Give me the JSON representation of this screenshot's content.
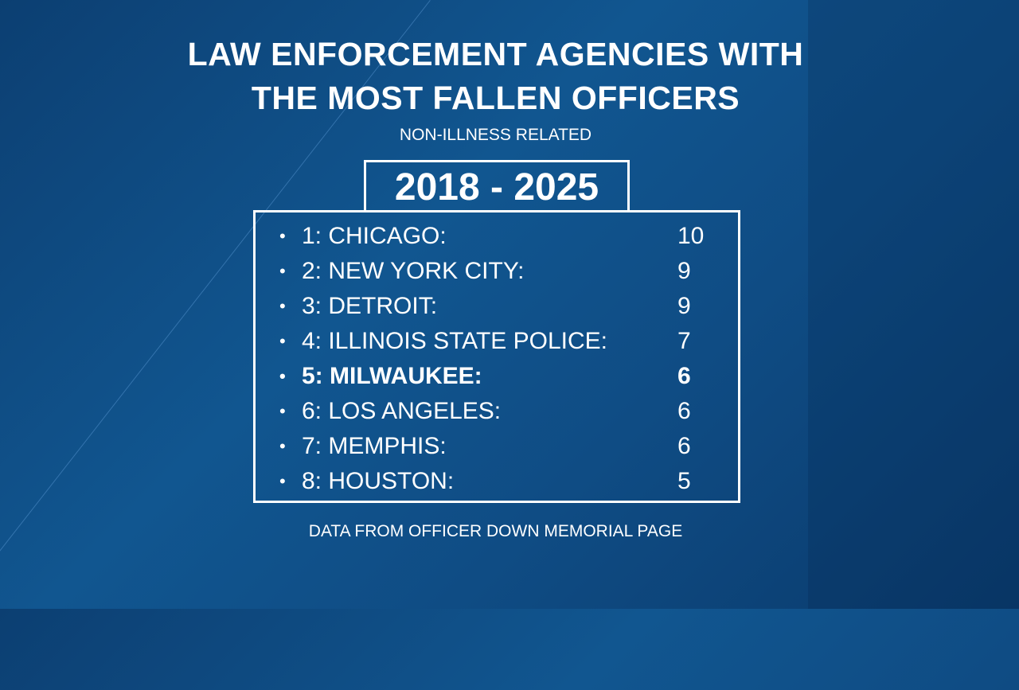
{
  "title_lines": [
    "LAW ENFORCEMENT AGENCIES WITH",
    "THE MOST FALLEN OFFICERS"
  ],
  "subtitle": "NON-ILLNESS RELATED",
  "years": "2018 - 2025",
  "bullet": "•",
  "items": [
    {
      "label": "1: CHICAGO:",
      "value": "10"
    },
    {
      "label": "2: NEW YORK CITY:",
      "value": "9"
    },
    {
      "label": "3: DETROIT:",
      "value": "9"
    },
    {
      "label": "4: ILLINOIS STATE POLICE:",
      "value": "7"
    },
    {
      "label": "5: MILWAUKEE:",
      "value": "6",
      "highlight": true
    },
    {
      "label": "6: LOS ANGELES:",
      "value": "6"
    },
    {
      "label": "7: MEMPHIS:",
      "value": "6"
    },
    {
      "label": "8: HOUSTON:",
      "value": "5"
    }
  ],
  "footer": "DATA FROM OFFICER DOWN MEMORIAL PAGE",
  "colors": {
    "background": "#115690",
    "text": "#ffffff"
  }
}
